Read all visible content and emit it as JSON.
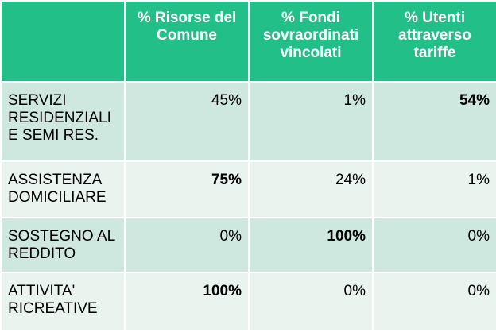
{
  "header": {
    "corner": "",
    "columns": [
      "% Risorse del Comune",
      "% Fondi sovraordinati vincolati",
      "% Utenti attraverso tariffe"
    ]
  },
  "rows": [
    {
      "label": "SERVIZI RESIDENZIALI E SEMI RES.",
      "values": [
        "45%",
        "1%",
        "54%"
      ]
    },
    {
      "label": "ASSISTENZA DOMICILIARE",
      "values": [
        "75%",
        "24%",
        "1%"
      ]
    },
    {
      "label": "SOSTEGNO AL REDDITO",
      "values": [
        "0%",
        "100%",
        "0%"
      ]
    },
    {
      "label": "ATTIVITA' RICREATIVE",
      "values": [
        "100%",
        "0%",
        "0%"
      ]
    }
  ],
  "colors": {
    "header_bg": "#22bf88",
    "row_dark": "#cfe8df",
    "row_light": "#e9f4ef"
  }
}
